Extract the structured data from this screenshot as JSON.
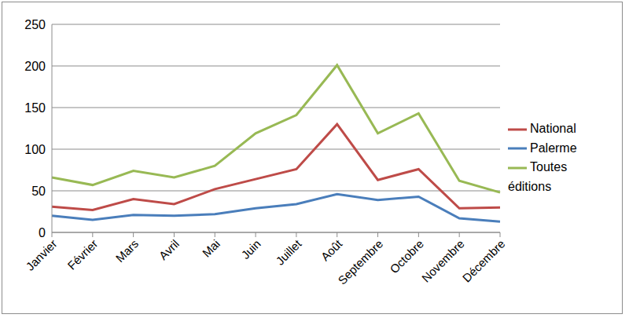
{
  "chart_data": {
    "type": "line",
    "categories": [
      "Janvier",
      "Février",
      "Mars",
      "Avril",
      "Mai",
      "Juin",
      "Juillet",
      "Août",
      "Septembre",
      "Octobre",
      "Novembre",
      "Décembre"
    ],
    "series": [
      {
        "name": "Palerme",
        "color": "#4a7ebb",
        "values": [
          20,
          15,
          21,
          20,
          22,
          29,
          34,
          46,
          39,
          43,
          17,
          13
        ]
      },
      {
        "name": "National",
        "color": "#be4b48",
        "values": [
          31,
          27,
          40,
          34,
          52,
          64,
          76,
          130,
          63,
          76,
          29,
          30
        ]
      },
      {
        "name": "Toutes éditions",
        "color": "#98b954",
        "values": [
          66,
          57,
          74,
          66,
          80,
          119,
          141,
          201,
          119,
          143,
          62,
          48
        ]
      }
    ],
    "ylim": [
      0,
      250
    ],
    "yticks": [
      0,
      50,
      100,
      150,
      200,
      250
    ],
    "grid": true,
    "legend": "right",
    "marker": "none"
  }
}
